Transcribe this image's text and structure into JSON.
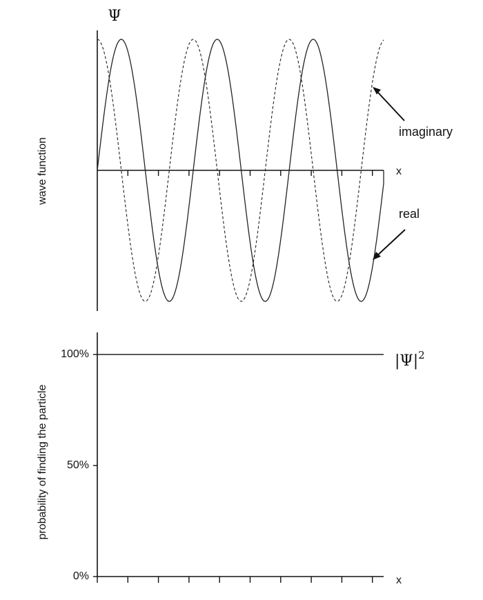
{
  "chart_data": [
    {
      "type": "line",
      "title": "",
      "ylabel": "wave function",
      "xlabel": "x",
      "y_axis_symbol": "Ψ",
      "xlim": [
        0,
        4.7
      ],
      "ylim": [
        -1,
        1
      ],
      "x_tick_count": 9,
      "series": [
        {
          "name": "real",
          "style": "solid",
          "color": "#222222",
          "function": "sin(2*pi*x/1.575)",
          "period": 1.575,
          "amplitude": 1,
          "phase_deg": 0,
          "closing_drop_to_axis": true
        },
        {
          "name": "imaginary",
          "style": "dashed",
          "color": "#222222",
          "function": "cos(2*pi*x/1.575)",
          "period": 1.575,
          "amplitude": 1,
          "phase_deg": 90
        }
      ],
      "annotations": [
        {
          "text": "imaginary",
          "points_to": "imaginary"
        },
        {
          "text": "real",
          "points_to": "real"
        }
      ]
    },
    {
      "type": "line",
      "title": "",
      "ylabel": "probability of finding the particle",
      "xlabel": "x",
      "ylim": [
        0,
        100
      ],
      "yticks": [
        "100%",
        "50%",
        "0%"
      ],
      "ytick_values": [
        100,
        50,
        0
      ],
      "x_tick_count": 9,
      "series": [
        {
          "name": "|Ψ|²",
          "name_base": "|Ψ|",
          "name_sup": "2",
          "style": "solid",
          "color": "#222222",
          "y": 100
        }
      ]
    }
  ]
}
